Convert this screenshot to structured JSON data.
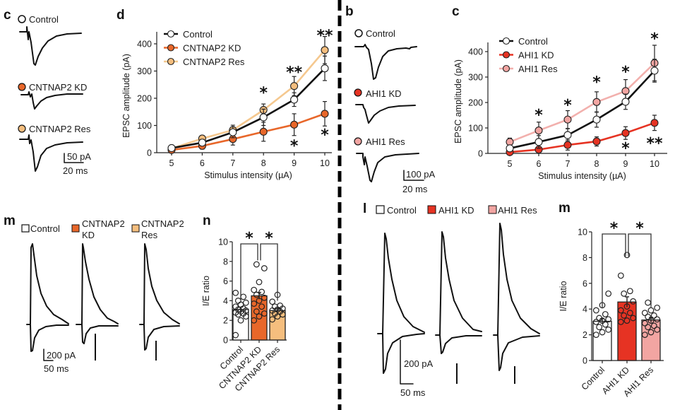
{
  "divider": {
    "style": "dashed",
    "color": "#000000"
  },
  "panels": {
    "c_left": {
      "letter": "c",
      "traces": [
        {
          "label": "Control",
          "marker_color": "#ffffff"
        },
        {
          "label": "CNTNAP2 KD",
          "marker_color": "#e8672a"
        },
        {
          "label": "CNTNAP2 Res",
          "marker_color": "#f5be7e"
        }
      ],
      "scale_bar": {
        "y_label": "50 pA",
        "x_label": "20 ms"
      }
    },
    "b_right": {
      "letter": "b",
      "traces": [
        {
          "label": "Control",
          "marker_color": "#ffffff"
        },
        {
          "label": "AHI1 KD",
          "marker_color": "#e63323"
        },
        {
          "label": "AHI1 Res",
          "marker_color": "#f2a5a2"
        }
      ],
      "scale_bar": {
        "y_label": "100 pA",
        "x_label": "20 ms"
      }
    },
    "m_left": {
      "letter": "m",
      "legend": [
        {
          "label": "Control",
          "color": "#ffffff"
        },
        {
          "label": "CNTNAP2 KD",
          "line1": "CNTNAP2",
          "line2": "KD",
          "color": "#e8672a"
        },
        {
          "label": "CNTNAP2 Res",
          "line1": "CNTNAP2",
          "line2": "Res",
          "color": "#f5be7e"
        }
      ],
      "scale_bar": {
        "y_label": "200 pA",
        "x_label": "50 ms"
      }
    },
    "l_right": {
      "letter": "l",
      "legend": [
        {
          "label": "Control",
          "color": "#ffffff"
        },
        {
          "label": "AHI1 KD",
          "color": "#e63323"
        },
        {
          "label": "AHI1 Res",
          "color": "#f2a5a2"
        }
      ],
      "scale_bar": {
        "y_label": "200 pA",
        "x_label": "50 ms"
      }
    }
  },
  "chart_data": [
    {
      "id": "d",
      "letter": "d",
      "type": "line",
      "title": "",
      "xlabel": "Stimulus intensity (µA)",
      "ylabel": "EPSC amplitude (pA)",
      "x": [
        5,
        6,
        7,
        8,
        9,
        10
      ],
      "xticks": [
        "5",
        "6",
        "7",
        "8",
        "9",
        "10"
      ],
      "yticks": [
        "0",
        "100",
        "200",
        "300",
        "400"
      ],
      "ylim": [
        0,
        450
      ],
      "xlim": [
        4.5,
        10.5
      ],
      "legend_position": "top-left",
      "series": [
        {
          "name": "Control",
          "line": "#111111",
          "fill": "#ffffff",
          "values": [
            17,
            37,
            75,
            130,
            195,
            310
          ],
          "err": [
            8,
            12,
            20,
            30,
            25,
            45
          ]
        },
        {
          "name": "CNTNAP2 KD",
          "line": "#e8672a",
          "fill": "#e8672a",
          "values": [
            10,
            25,
            50,
            77,
            103,
            143
          ],
          "err": [
            6,
            12,
            22,
            35,
            40,
            45
          ]
        },
        {
          "name": "CNTNAP2 Res",
          "line": "#f5c88f",
          "fill": "#f5be7e",
          "values": [
            15,
            52,
            83,
            157,
            245,
            377
          ],
          "err": [
            8,
            10,
            18,
            22,
            35,
            50
          ]
        }
      ],
      "annotations": [
        {
          "text": "*",
          "x": 8,
          "y": 225
        },
        {
          "text": "**",
          "x": 9,
          "y": 300
        },
        {
          "text": "**",
          "x": 10,
          "y": 435
        },
        {
          "text": "*",
          "x": 9,
          "y": 30
        },
        {
          "text": "*",
          "x": 10,
          "y": 70
        }
      ]
    },
    {
      "id": "c",
      "letter": "c",
      "type": "line",
      "title": "",
      "xlabel": "Stimulus intensity (µA)",
      "ylabel": "EPSC amplitude (pA)",
      "x": [
        5,
        6,
        7,
        8,
        9,
        10
      ],
      "xticks": [
        "5",
        "6",
        "7",
        "8",
        "9",
        "10"
      ],
      "yticks": [
        "0",
        "100",
        "200",
        "300",
        "400"
      ],
      "ylim": [
        0,
        450
      ],
      "xlim": [
        4.5,
        10.5
      ],
      "legend_position": "top-left",
      "series": [
        {
          "name": "Control",
          "line": "#111111",
          "fill": "#ffffff",
          "values": [
            20,
            45,
            72,
            133,
            203,
            325
          ],
          "err": [
            10,
            25,
            25,
            30,
            30,
            45
          ]
        },
        {
          "name": "AHI1 KD",
          "line": "#e63323",
          "fill": "#e63323",
          "values": [
            5,
            15,
            33,
            47,
            80,
            120
          ],
          "err": [
            5,
            8,
            20,
            18,
            25,
            30
          ]
        },
        {
          "name": "AHI1 Res",
          "line": "#f2b0ad",
          "fill": "#f2a5a2",
          "values": [
            45,
            90,
            133,
            202,
            245,
            355
          ],
          "err": [
            15,
            33,
            35,
            40,
            45,
            70
          ]
        }
      ],
      "annotations": [
        {
          "text": "*",
          "x": 6,
          "y": 155
        },
        {
          "text": "*",
          "x": 7,
          "y": 195
        },
        {
          "text": "*",
          "x": 8,
          "y": 285
        },
        {
          "text": "*",
          "x": 9,
          "y": 325
        },
        {
          "text": "*",
          "x": 10,
          "y": 455
        },
        {
          "text": "*",
          "x": 9,
          "y": 25
        },
        {
          "text": "**",
          "x": 10,
          "y": 45
        }
      ]
    },
    {
      "id": "n",
      "letter": "n",
      "type": "bar",
      "title": "",
      "xlabel": "",
      "ylabel": "I/E ratio",
      "categories": [
        "Control",
        "CNTNAP2 KD",
        "CNTNAP2 Res"
      ],
      "values": [
        3.1,
        4.5,
        3.0
      ],
      "err": [
        0.25,
        0.35,
        0.2
      ],
      "colors": [
        "#ffffff",
        "#e8672a",
        "#f5be7e"
      ],
      "yticks": [
        "0",
        "2",
        "4",
        "6",
        "8",
        "10"
      ],
      "ylim": [
        0,
        10
      ],
      "points": [
        [
          0.5,
          2.0,
          2.4,
          2.6,
          2.7,
          2.8,
          2.9,
          3.0,
          3.1,
          3.2,
          3.4,
          3.6,
          3.8,
          4.0,
          4.4,
          4.8
        ],
        [
          2.0,
          2.4,
          2.7,
          2.9,
          3.4,
          3.7,
          4.0,
          4.3,
          4.6,
          4.9,
          5.1,
          5.9,
          7.3,
          7.7
        ],
        [
          2.1,
          2.4,
          2.6,
          2.7,
          2.9,
          3.0,
          3.1,
          3.2,
          3.4,
          3.5,
          3.9,
          4.6
        ]
      ],
      "annotations": [
        {
          "text": "*",
          "between": [
            0,
            1
          ]
        },
        {
          "text": "*",
          "between": [
            1,
            2
          ]
        }
      ]
    },
    {
      "id": "m",
      "letter": "m",
      "type": "bar",
      "title": "",
      "xlabel": "",
      "ylabel": "I/E ratio",
      "categories": [
        "Control",
        "AHI1 KD",
        "AHI1 Res"
      ],
      "values": [
        3.05,
        4.55,
        3.15
      ],
      "err": [
        0.2,
        0.4,
        0.2
      ],
      "colors": [
        "#ffffff",
        "#e63323",
        "#f2a5a2"
      ],
      "yticks": [
        "0",
        "2",
        "4",
        "6",
        "8",
        "10"
      ],
      "ylim": [
        0,
        10
      ],
      "points": [
        [
          2.0,
          2.2,
          2.4,
          2.6,
          2.8,
          3.0,
          3.1,
          3.2,
          3.3,
          3.6,
          3.9,
          4.3,
          5.2
        ],
        [
          3.0,
          3.1,
          3.3,
          3.5,
          3.7,
          3.9,
          4.2,
          4.6,
          5.2,
          5.4,
          6.6,
          8.2
        ],
        [
          2.0,
          2.2,
          2.4,
          2.6,
          2.7,
          2.9,
          3.1,
          3.2,
          3.4,
          3.5,
          3.7,
          3.9,
          4.1,
          4.5
        ]
      ],
      "annotations": [
        {
          "text": "*",
          "between": [
            0,
            1
          ]
        },
        {
          "text": "*",
          "between": [
            1,
            2
          ]
        }
      ]
    }
  ]
}
